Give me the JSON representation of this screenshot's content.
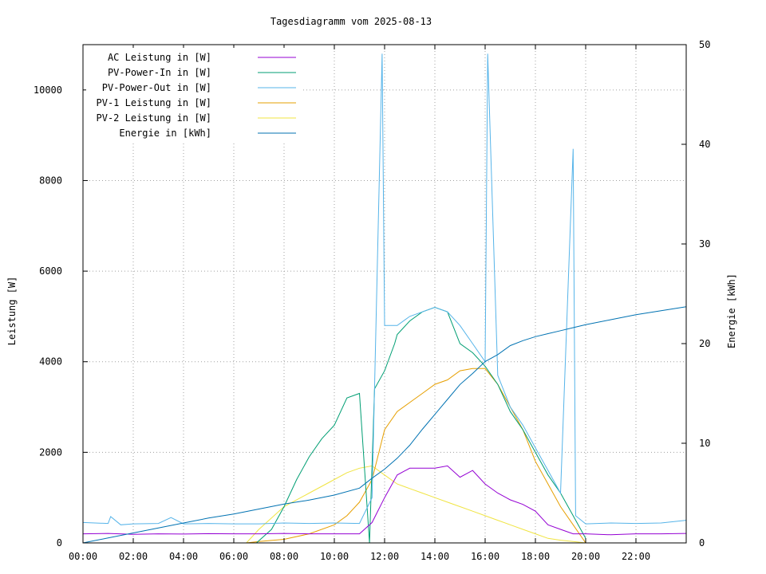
{
  "chart_data": {
    "type": "line",
    "title": "Tagesdiagramm vom 2025-08-13",
    "ylabel": "Leistung [W]",
    "y2label": "Energie [kWh]",
    "xlim": [
      0,
      24
    ],
    "ylim": [
      0,
      11000
    ],
    "y2lim": [
      0,
      50
    ],
    "x_ticks": [
      "00:00",
      "02:00",
      "04:00",
      "06:00",
      "08:00",
      "10:00",
      "12:00",
      "14:00",
      "16:00",
      "18:00",
      "20:00",
      "22:00"
    ],
    "y_ticks": [
      "0",
      "2000",
      "4000",
      "6000",
      "8000",
      "10000"
    ],
    "y2_ticks": [
      "0",
      "10",
      "20",
      "30",
      "40",
      "50"
    ],
    "grid": true,
    "legend_position": "top-left",
    "series": [
      {
        "name": "AC Leistung in [W]",
        "axis": "left",
        "color": "#9400d3",
        "x": [
          0,
          1,
          2,
          3,
          4,
          5,
          6,
          7,
          8,
          9,
          10,
          11,
          11.5,
          12,
          12.5,
          13,
          13.5,
          14,
          14.5,
          15,
          15.5,
          16,
          16.5,
          17,
          17.5,
          18,
          18.5,
          19,
          19.5,
          20,
          21,
          22,
          23,
          24
        ],
        "y": [
          200,
          210,
          190,
          200,
          195,
          205,
          200,
          200,
          210,
          200,
          200,
          200,
          450,
          1000,
          1500,
          1650,
          1650,
          1650,
          1700,
          1450,
          1600,
          1300,
          1100,
          950,
          850,
          700,
          400,
          300,
          200,
          200,
          180,
          200,
          200,
          210
        ]
      },
      {
        "name": "PV-Power-In in [W]",
        "axis": "left",
        "color": "#009e73",
        "x": [
          6.9,
          7.5,
          8,
          8.5,
          9,
          9.5,
          10,
          10.5,
          11,
          11.4,
          11.6,
          12,
          12.4,
          12.5,
          13,
          13.5,
          14,
          14.5,
          15,
          15.5,
          16,
          16.5,
          17,
          17.5,
          18,
          18.5,
          19,
          19.5,
          20
        ],
        "y": [
          0,
          300,
          800,
          1400,
          1900,
          2300,
          2600,
          3200,
          3300,
          0,
          3400,
          3800,
          4400,
          4600,
          4900,
          5100,
          5200,
          5100,
          4400,
          4200,
          3900,
          3500,
          2900,
          2500,
          2000,
          1500,
          1100,
          600,
          100
        ]
      },
      {
        "name": "PV-Power-Out in [W]",
        "axis": "left",
        "color": "#56b4e9",
        "x": [
          0,
          1,
          1.1,
          1.5,
          2,
          3,
          3.5,
          4,
          5,
          6,
          7,
          8,
          9,
          10,
          11,
          11.5,
          11.9,
          12,
          12.5,
          13,
          13.5,
          14,
          14.5,
          15,
          15.5,
          16,
          16.1,
          16.5,
          17,
          17.5,
          18,
          18.5,
          19,
          19.5,
          19.6,
          20,
          21,
          22,
          23,
          24
        ],
        "y": [
          450,
          430,
          580,
          400,
          420,
          430,
          560,
          420,
          430,
          420,
          420,
          440,
          430,
          440,
          430,
          1000,
          10800,
          4800,
          4800,
          5000,
          5100,
          5200,
          5100,
          4800,
          4400,
          4000,
          10800,
          3700,
          3000,
          2600,
          2100,
          1600,
          1100,
          8700,
          600,
          420,
          440,
          430,
          440,
          500
        ]
      },
      {
        "name": "PV-1 Leistung in [W]",
        "axis": "left",
        "color": "#e69f00",
        "x": [
          6.5,
          7,
          8,
          9,
          10,
          10.5,
          11,
          11.5,
          12,
          12.5,
          13,
          13.5,
          14,
          14.5,
          15,
          15.5,
          16,
          16.5,
          17,
          17.5,
          18,
          18.5,
          19,
          19.5,
          20
        ],
        "y": [
          0,
          30,
          80,
          200,
          400,
          600,
          900,
          1400,
          2500,
          2900,
          3100,
          3300,
          3500,
          3600,
          3800,
          3850,
          3850,
          3500,
          3000,
          2500,
          1800,
          1300,
          800,
          400,
          0
        ]
      },
      {
        "name": "PV-2 Leistung in [W]",
        "axis": "left",
        "color": "#f0e442",
        "x": [
          6.5,
          7,
          8,
          9,
          10,
          10.5,
          11,
          11.5,
          12,
          12.5,
          13,
          13.5,
          14,
          14.5,
          15,
          15.5,
          16,
          16.5,
          17,
          17.5,
          18,
          18.5,
          19,
          19.5,
          20
        ],
        "y": [
          0,
          300,
          800,
          1100,
          1400,
          1550,
          1650,
          1700,
          1500,
          1300,
          1200,
          1100,
          1000,
          900,
          800,
          700,
          600,
          500,
          400,
          300,
          200,
          100,
          60,
          30,
          0
        ]
      },
      {
        "name": "Energie in [kWh]",
        "axis": "right",
        "color": "#0072b2",
        "x": [
          0,
          1,
          2,
          3,
          4,
          5,
          6,
          7,
          8,
          9,
          10,
          11,
          11.5,
          12,
          12.5,
          13,
          13.5,
          14,
          14.5,
          15,
          15.5,
          16,
          16.5,
          17,
          17.5,
          18,
          18.5,
          19,
          19.5,
          20,
          21,
          22,
          23,
          24
        ],
        "y": [
          0,
          0.5,
          1.0,
          1.5,
          2.0,
          2.5,
          2.9,
          3.4,
          3.9,
          4.3,
          4.8,
          5.5,
          6.5,
          7.4,
          8.5,
          9.8,
          11.4,
          12.9,
          14.4,
          15.9,
          17.0,
          18.2,
          18.9,
          19.8,
          20.3,
          20.7,
          21.0,
          21.3,
          21.6,
          21.9,
          22.4,
          22.9,
          23.3,
          23.7
        ]
      }
    ]
  }
}
